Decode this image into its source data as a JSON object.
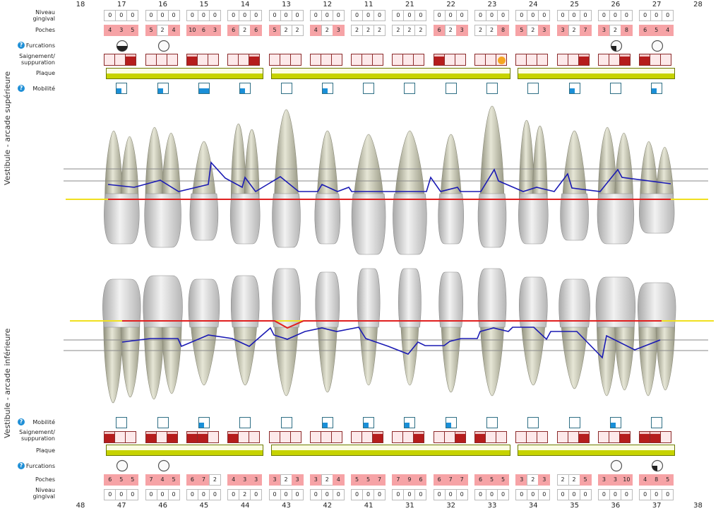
{
  "labels": {
    "gingival": "Niveau gingival",
    "gingival_l1": "Niveau",
    "gingival_l2": "gingival",
    "pockets": "Poches",
    "furcations": "Furcations",
    "bleeding_l1": "Saignement/",
    "bleeding_l2": "suppuration",
    "plaque": "Plaque",
    "mobility": "Mobilité",
    "help_icon": "?",
    "upper_side": "Vestibule - arcade supérieure",
    "lower_side": "Vestibule - arcade inférieure"
  },
  "colors": {
    "pocket_alert": "#f6a3a6",
    "bleeding": "#b51d1d",
    "suppuration": "#f5a623",
    "plaque": "#c7d300",
    "mobility": "#1a8fd8",
    "attachment_line": "#1a1ab4",
    "gingival_line": "#e02020",
    "cej_line": "#f0e020"
  },
  "upper": {
    "absent": [
      "18",
      "28"
    ],
    "plaque_segments": [
      [
        "17",
        "14"
      ],
      [
        "13",
        "23"
      ],
      [
        "24",
        "27"
      ]
    ],
    "teeth": [
      {
        "number": "17",
        "gingival": [
          "0",
          "0",
          "0"
        ],
        "pockets": [
          "4",
          "3",
          "5"
        ],
        "furcation": "half",
        "bleeding": [
          "none",
          "none",
          "bleeding"
        ],
        "mobility": 1
      },
      {
        "number": "16",
        "gingival": [
          "0",
          "0",
          "0"
        ],
        "pockets": [
          "5",
          "2",
          "4"
        ],
        "furcation": "empty",
        "bleeding": [
          "none",
          "none",
          "none"
        ],
        "mobility": 1
      },
      {
        "number": "15",
        "gingival": [
          "0",
          "0",
          "0"
        ],
        "pockets": [
          "10",
          "6",
          "3"
        ],
        "furcation": null,
        "bleeding": [
          "bleeding",
          "none",
          "none"
        ],
        "mobility": 2
      },
      {
        "number": "14",
        "gingival": [
          "0",
          "0",
          "0"
        ],
        "pockets": [
          "6",
          "2",
          "6"
        ],
        "furcation": null,
        "bleeding": [
          "none",
          "none",
          "bleeding"
        ],
        "mobility": 1
      },
      {
        "number": "13",
        "gingival": [
          "0",
          "0",
          "0"
        ],
        "pockets": [
          "5",
          "2",
          "2"
        ],
        "furcation": null,
        "bleeding": [
          "none",
          "none",
          "none"
        ],
        "mobility": 0
      },
      {
        "number": "12",
        "gingival": [
          "0",
          "0",
          "0"
        ],
        "pockets": [
          "4",
          "2",
          "3"
        ],
        "furcation": null,
        "bleeding": [
          "none",
          "none",
          "none"
        ],
        "mobility": 1
      },
      {
        "number": "11",
        "gingival": [
          "0",
          "0",
          "0"
        ],
        "pockets": [
          "2",
          "2",
          "2"
        ],
        "furcation": null,
        "bleeding": [
          "none",
          "none",
          "none"
        ],
        "mobility": 0
      },
      {
        "number": "21",
        "gingival": [
          "0",
          "0",
          "0"
        ],
        "pockets": [
          "2",
          "2",
          "2"
        ],
        "furcation": null,
        "bleeding": [
          "none",
          "none",
          "none"
        ],
        "mobility": 0
      },
      {
        "number": "22",
        "gingival": [
          "0",
          "0",
          "0"
        ],
        "pockets": [
          "6",
          "2",
          "3"
        ],
        "furcation": null,
        "bleeding": [
          "bleeding",
          "none",
          "none"
        ],
        "mobility": 0
      },
      {
        "number": "23",
        "gingival": [
          "0",
          "0",
          "0"
        ],
        "pockets": [
          "2",
          "2",
          "8"
        ],
        "furcation": null,
        "bleeding": [
          "none",
          "none",
          "suppuration"
        ],
        "mobility": 0
      },
      {
        "number": "24",
        "gingival": [
          "0",
          "0",
          "0"
        ],
        "pockets": [
          "5",
          "2",
          "3"
        ],
        "furcation": null,
        "bleeding": [
          "none",
          "none",
          "none"
        ],
        "mobility": 0
      },
      {
        "number": "25",
        "gingival": [
          "0",
          "0",
          "0"
        ],
        "pockets": [
          "3",
          "2",
          "7"
        ],
        "furcation": null,
        "bleeding": [
          "none",
          "none",
          "bleeding"
        ],
        "mobility": 1
      },
      {
        "number": "26",
        "gingival": [
          "0",
          "0",
          "0"
        ],
        "pockets": [
          "3",
          "2",
          "8"
        ],
        "furcation": "quarter",
        "bleeding": [
          "none",
          "none",
          "bleeding"
        ],
        "mobility": 0
      },
      {
        "number": "27",
        "gingival": [
          "0",
          "0",
          "0"
        ],
        "pockets": [
          "6",
          "5",
          "4"
        ],
        "furcation": "empty",
        "bleeding": [
          "bleeding",
          "none",
          "none"
        ],
        "mobility": 1
      }
    ]
  },
  "lower": {
    "absent": [
      "48",
      "38"
    ],
    "plaque_segments": [
      [
        "47",
        "44"
      ],
      [
        "43",
        "33"
      ],
      [
        "34",
        "37"
      ]
    ],
    "teeth": [
      {
        "number": "47",
        "gingival": [
          "0",
          "0",
          "0"
        ],
        "pockets": [
          "6",
          "5",
          "5"
        ],
        "furcation": "empty",
        "bleeding": [
          "bleeding",
          "none",
          "none"
        ],
        "mobility": 0
      },
      {
        "number": "46",
        "gingival": [
          "0",
          "0",
          "0"
        ],
        "pockets": [
          "7",
          "4",
          "5"
        ],
        "furcation": "empty",
        "bleeding": [
          "bleeding",
          "none",
          "bleeding"
        ],
        "mobility": 0
      },
      {
        "number": "45",
        "gingival": [
          "0",
          "0",
          "0"
        ],
        "pockets": [
          "6",
          "7",
          "2"
        ],
        "furcation": null,
        "bleeding": [
          "bleeding",
          "bleeding",
          "none"
        ],
        "mobility": 1
      },
      {
        "number": "44",
        "gingival": [
          "0",
          "2",
          "0"
        ],
        "pockets": [
          "4",
          "3",
          "3"
        ],
        "furcation": null,
        "bleeding": [
          "bleeding",
          "none",
          "none"
        ],
        "mobility": 0
      },
      {
        "number": "43",
        "gingival": [
          "0",
          "0",
          "0"
        ],
        "pockets": [
          "3",
          "2",
          "3"
        ],
        "furcation": null,
        "bleeding": [
          "none",
          "none",
          "none"
        ],
        "mobility": 0
      },
      {
        "number": "42",
        "gingival": [
          "0",
          "0",
          "0"
        ],
        "pockets": [
          "3",
          "2",
          "4"
        ],
        "furcation": null,
        "bleeding": [
          "none",
          "none",
          "none"
        ],
        "mobility": 1
      },
      {
        "number": "41",
        "gingival": [
          "0",
          "0",
          "0"
        ],
        "pockets": [
          "5",
          "5",
          "7"
        ],
        "furcation": null,
        "bleeding": [
          "none",
          "none",
          "bleeding"
        ],
        "mobility": 1
      },
      {
        "number": "31",
        "gingival": [
          "0",
          "0",
          "0"
        ],
        "pockets": [
          "7",
          "9",
          "6"
        ],
        "furcation": null,
        "bleeding": [
          "none",
          "none",
          "bleeding"
        ],
        "mobility": 1
      },
      {
        "number": "32",
        "gingival": [
          "0",
          "0",
          "0"
        ],
        "pockets": [
          "6",
          "7",
          "7"
        ],
        "furcation": null,
        "bleeding": [
          "none",
          "none",
          "bleeding"
        ],
        "mobility": 1
      },
      {
        "number": "33",
        "gingival": [
          "0",
          "0",
          "0"
        ],
        "pockets": [
          "6",
          "5",
          "5"
        ],
        "furcation": null,
        "bleeding": [
          "bleeding",
          "none",
          "none"
        ],
        "mobility": 0
      },
      {
        "number": "34",
        "gingival": [
          "0",
          "0",
          "0"
        ],
        "pockets": [
          "3",
          "2",
          "3"
        ],
        "furcation": null,
        "bleeding": [
          "none",
          "none",
          "none"
        ],
        "mobility": 0
      },
      {
        "number": "35",
        "gingival": [
          "0",
          "0",
          "0"
        ],
        "pockets": [
          "2",
          "2",
          "5"
        ],
        "furcation": null,
        "bleeding": [
          "none",
          "none",
          "bleeding"
        ],
        "mobility": 0
      },
      {
        "number": "36",
        "gingival": [
          "0",
          "0",
          "0"
        ],
        "pockets": [
          "3",
          "3",
          "10"
        ],
        "furcation": "empty",
        "bleeding": [
          "none",
          "none",
          "bleeding"
        ],
        "mobility": 1
      },
      {
        "number": "37",
        "gingival": [
          "0",
          "0",
          "0"
        ],
        "pockets": [
          "4",
          "8",
          "5"
        ],
        "furcation": "quarter",
        "bleeding": [
          "bleeding",
          "bleeding",
          "none"
        ],
        "mobility": 0
      }
    ]
  }
}
